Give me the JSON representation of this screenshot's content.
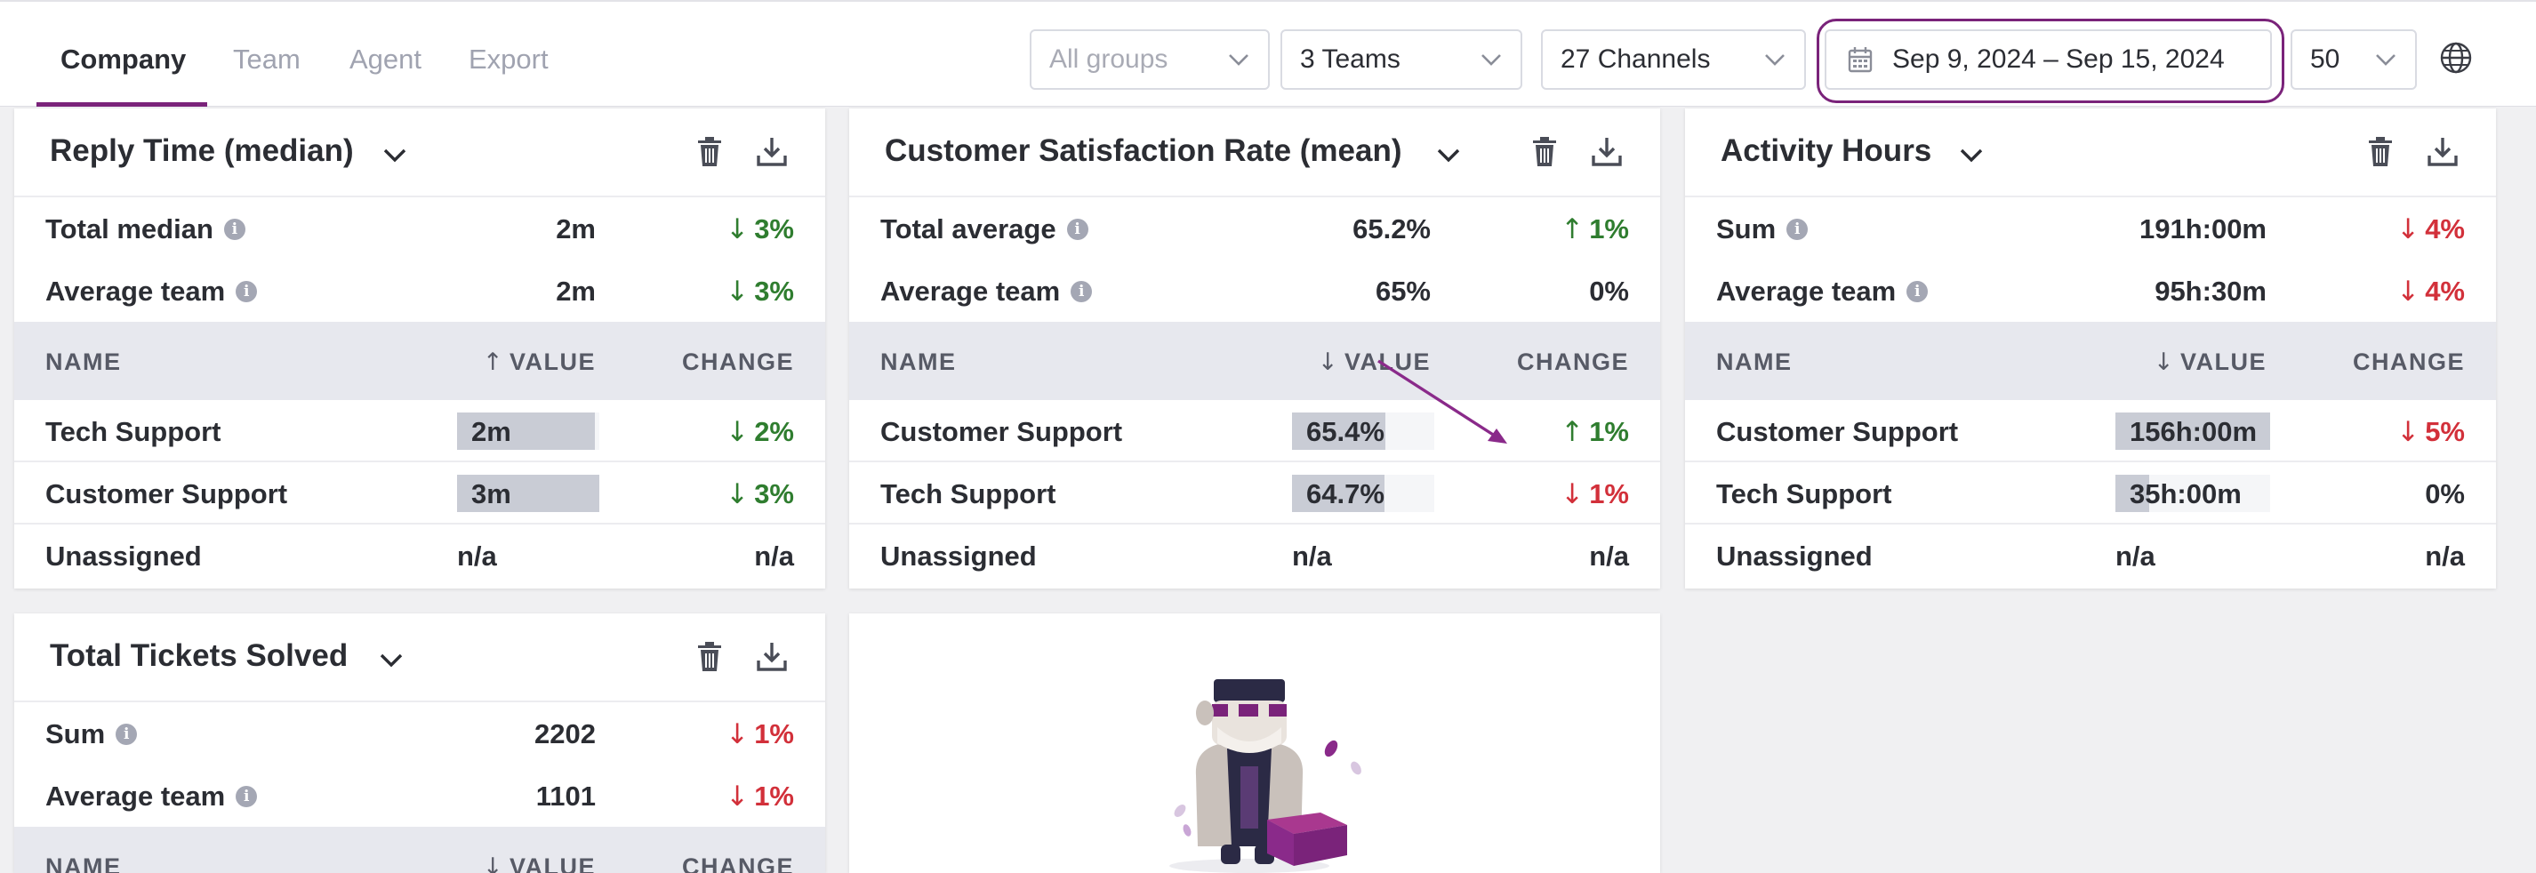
{
  "tabs": [
    {
      "label": "Company",
      "active": true
    },
    {
      "label": "Team",
      "active": false
    },
    {
      "label": "Agent",
      "active": false
    },
    {
      "label": "Export",
      "active": false
    }
  ],
  "filters": {
    "groups_placeholder": "All groups",
    "teams": "3 Teams",
    "channels": "27 Channels",
    "date_range": "Sep 9, 2024 – Sep 15, 2024",
    "page_size": "50"
  },
  "colors": {
    "accent": "#7a237a",
    "positive": "#2f7d2f",
    "negative": "#d2303a"
  },
  "cards": {
    "reply_time": {
      "title": "Reply Time (median)",
      "summary": [
        {
          "label": "Total median",
          "value": "2m",
          "change": "3%",
          "dir": "down",
          "tone": "good"
        },
        {
          "label": "Average team",
          "value": "2m",
          "change": "3%",
          "dir": "down",
          "tone": "good"
        }
      ],
      "headers": {
        "name": "NAME",
        "value": "VALUE",
        "value_sort": "up",
        "change": "CHANGE"
      },
      "rows": [
        {
          "name": "Tech Support",
          "value": "2m",
          "fill": 0.97,
          "change": "2%",
          "dir": "down",
          "tone": "good"
        },
        {
          "name": "Customer Support",
          "value": "3m",
          "fill": 1.0,
          "change": "3%",
          "dir": "down",
          "tone": "good"
        },
        {
          "name": "Unassigned",
          "value": "n/a",
          "change": "n/a"
        }
      ]
    },
    "csat": {
      "title": "Customer Satisfaction Rate (mean)",
      "summary": [
        {
          "label": "Total average",
          "value": "65.2%",
          "change": "1%",
          "dir": "up",
          "tone": "good"
        },
        {
          "label": "Average team",
          "value": "65%",
          "change": "0%",
          "dir": "none",
          "tone": "neutral"
        }
      ],
      "headers": {
        "name": "NAME",
        "value": "VALUE",
        "value_sort": "down",
        "change": "CHANGE"
      },
      "rows": [
        {
          "name": "Customer Support",
          "value": "65.4%",
          "fill": 0.654,
          "change": "1%",
          "dir": "up",
          "tone": "good"
        },
        {
          "name": "Tech Support",
          "value": "64.7%",
          "fill": 0.647,
          "change": "1%",
          "dir": "down",
          "tone": "bad"
        },
        {
          "name": "Unassigned",
          "value": "n/a",
          "change": "n/a"
        }
      ]
    },
    "activity": {
      "title": "Activity Hours",
      "summary": [
        {
          "label": "Sum",
          "value": "191h:00m",
          "change": "4%",
          "dir": "down",
          "tone": "bad"
        },
        {
          "label": "Average team",
          "value": "95h:30m",
          "change": "4%",
          "dir": "down",
          "tone": "bad"
        }
      ],
      "headers": {
        "name": "NAME",
        "value": "VALUE",
        "value_sort": "down",
        "change": "CHANGE"
      },
      "rows": [
        {
          "name": "Customer Support",
          "value": "156h:00m",
          "fill": 1.0,
          "change": "5%",
          "dir": "down",
          "tone": "bad"
        },
        {
          "name": "Tech Support",
          "value": "35h:00m",
          "fill": 0.22,
          "change": "0%",
          "dir": "none",
          "tone": "neutral"
        },
        {
          "name": "Unassigned",
          "value": "n/a",
          "change": "n/a"
        }
      ]
    },
    "tickets": {
      "title": "Total Tickets Solved",
      "summary": [
        {
          "label": "Sum",
          "value": "2202",
          "change": "1%",
          "dir": "down",
          "tone": "bad"
        },
        {
          "label": "Average team",
          "value": "1101",
          "change": "1%",
          "dir": "down",
          "tone": "bad"
        }
      ],
      "headers": {
        "name": "NAME",
        "value": "VALUE",
        "value_sort": "down",
        "change": "CHANGE"
      }
    }
  },
  "arrows": {
    "up": "↑",
    "down": "↓",
    "none": ""
  }
}
